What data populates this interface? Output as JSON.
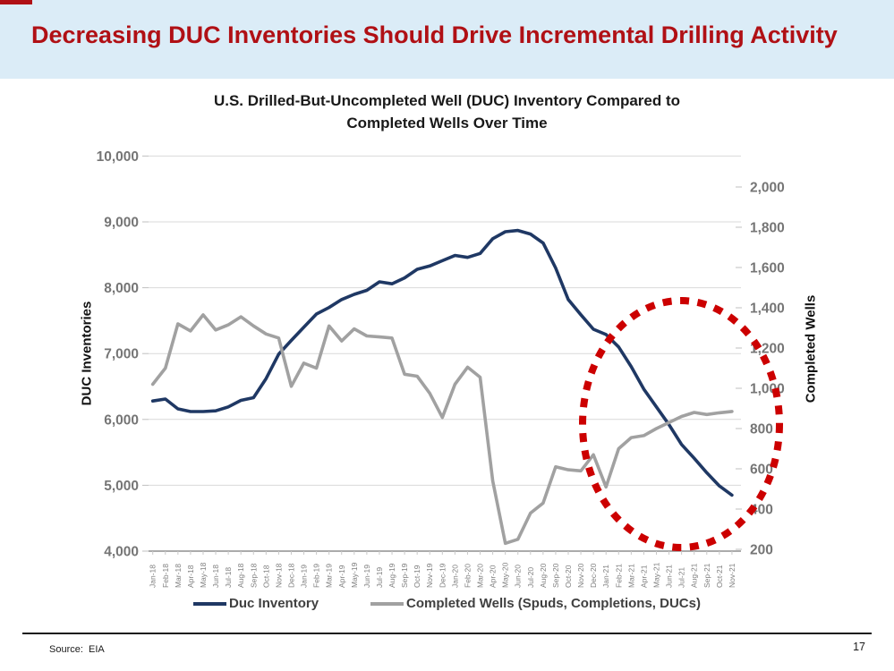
{
  "header": {
    "title": "Decreasing DUC Inventories Should Drive Incremental Drilling Activity",
    "accent_color": "#b01015",
    "band_color": "#dbecf7"
  },
  "chart": {
    "title_line1": "U.S. Drilled-But-Uncompleted Well (DUC) Inventory Compared to",
    "title_line2": "Completed Wells Over Time"
  },
  "chart_data": {
    "type": "line",
    "title": "U.S. Drilled-But-Uncompleted Well (DUC) Inventory Compared to Completed Wells Over Time",
    "grid": true,
    "legend_position": "bottom",
    "x": [
      "Jan-18",
      "Feb-18",
      "Mar-18",
      "Apr-18",
      "May-18",
      "Jun-18",
      "Jul-18",
      "Aug-18",
      "Sep-18",
      "Oct-18",
      "Nov-18",
      "Dec-18",
      "Jan-19",
      "Feb-19",
      "Mar-19",
      "Apr-19",
      "May-19",
      "Jun-19",
      "Jul-19",
      "Aug-19",
      "Sep-19",
      "Oct-19",
      "Nov-19",
      "Dec-19",
      "Jan-20",
      "Feb-20",
      "Mar-20",
      "Apr-20",
      "May-20",
      "Jun-20",
      "Jul-20",
      "Aug-20",
      "Sep-20",
      "Oct-20",
      "Nov-20",
      "Dec-20",
      "Jan-21",
      "Feb-21",
      "Mar-21",
      "Apr-21",
      "May-21",
      "Jun-21",
      "Jul-21",
      "Aug-21",
      "Sep-21",
      "Oct-21",
      "Nov-21"
    ],
    "left_axis": {
      "title": "DUC Inventories",
      "min": 4000,
      "max": 10000,
      "tick_values": [
        10000,
        9000,
        8000,
        7000,
        6000,
        5000,
        4000
      ],
      "tick_labels": [
        "10,000",
        "9,000",
        "8,000",
        "7,000",
        "6,000",
        "5,000",
        "4,000"
      ]
    },
    "right_axis": {
      "title": "Completed Wells",
      "min": 200,
      "max": 2000,
      "tick_values": [
        2000,
        1800,
        1600,
        1400,
        1200,
        1000,
        800,
        600,
        400,
        200
      ],
      "tick_labels": [
        "2,000",
        "1,800",
        "1,600",
        "1,400",
        "1,200",
        "1,000",
        "800",
        "600",
        "400",
        "200"
      ]
    },
    "series": [
      {
        "name": "Duc Inventory",
        "axis": "left",
        "color": "#1f3864",
        "values": [
          6280,
          6310,
          6160,
          6120,
          6120,
          6130,
          6190,
          6290,
          6330,
          6620,
          6990,
          7200,
          7400,
          7600,
          7700,
          7820,
          7900,
          7960,
          8090,
          8060,
          8150,
          8280,
          8330,
          8410,
          8490,
          8460,
          8520,
          8745,
          8850,
          8870,
          8815,
          8680,
          8300,
          7820,
          7590,
          7370,
          7290,
          7100,
          6800,
          6460,
          6190,
          5920,
          5620,
          5410,
          5190,
          4990,
          4850
        ]
      },
      {
        "name": "Completed Wells (Spuds, Completions, DUCs)",
        "axis": "right",
        "color": "#a1a1a1",
        "values": [
          1020,
          1100,
          1320,
          1285,
          1365,
          1290,
          1315,
          1355,
          1310,
          1270,
          1250,
          1010,
          1125,
          1100,
          1310,
          1235,
          1295,
          1260,
          1255,
          1250,
          1070,
          1060,
          975,
          855,
          1020,
          1105,
          1055,
          540,
          230,
          250,
          380,
          430,
          610,
          595,
          590,
          670,
          510,
          700,
          755,
          765,
          800,
          830,
          860,
          880,
          870,
          878,
          885
        ]
      }
    ],
    "annotation": {
      "type": "ellipse",
      "color": "#cc0000",
      "style": "dotted",
      "meaning": "highlights declining DUC inventory and rising completions in 2021"
    }
  },
  "footer": {
    "source_label": "Source:  EIA",
    "page_number": "17"
  }
}
